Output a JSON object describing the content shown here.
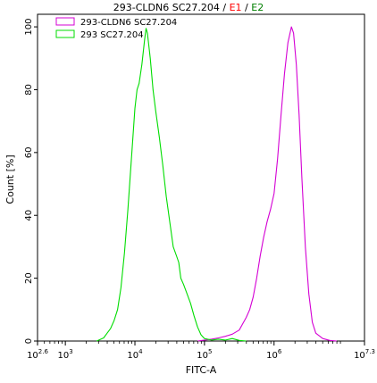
{
  "chart_data": {
    "type": "line",
    "title": {
      "main": "293-CLDN6 SC27.204",
      "sep1": " / ",
      "gate1": "E1",
      "sep2": " / ",
      "gate2": "E2"
    },
    "xlabel": "FITC-A",
    "ylabel": "Count [%]",
    "xscale": "log",
    "xlim_log10": [
      2.6,
      7.3
    ],
    "ylim": [
      0,
      104
    ],
    "x_ticks": [
      {
        "base": "10",
        "exp": "2.6",
        "log": 2.6
      },
      {
        "base": "10",
        "exp": "3",
        "log": 3
      },
      {
        "base": "10",
        "exp": "4",
        "log": 4
      },
      {
        "base": "10",
        "exp": "5",
        "log": 5
      },
      {
        "base": "10",
        "exp": "6",
        "log": 6
      },
      {
        "base": "10",
        "exp": "7.3",
        "log": 7.3
      }
    ],
    "y_ticks": [
      "0",
      "20",
      "40",
      "60",
      "80",
      "100"
    ],
    "legend_position": "top-left",
    "series": [
      {
        "name": "293-CLDN6 SC27.204",
        "color": "#d400d4",
        "points_log10_x": [
          [
            4.9,
            0
          ],
          [
            5.0,
            0.3
          ],
          [
            5.1,
            0.6
          ],
          [
            5.2,
            1.0
          ],
          [
            5.3,
            1.5
          ],
          [
            5.4,
            2.2
          ],
          [
            5.5,
            3.5
          ],
          [
            5.55,
            5.5
          ],
          [
            5.6,
            7.5
          ],
          [
            5.65,
            10
          ],
          [
            5.7,
            14
          ],
          [
            5.75,
            20
          ],
          [
            5.8,
            27
          ],
          [
            5.85,
            33
          ],
          [
            5.9,
            38
          ],
          [
            5.95,
            42
          ],
          [
            6.0,
            47
          ],
          [
            6.05,
            58
          ],
          [
            6.1,
            72
          ],
          [
            6.15,
            85
          ],
          [
            6.2,
            95
          ],
          [
            6.25,
            100
          ],
          [
            6.28,
            98
          ],
          [
            6.32,
            88
          ],
          [
            6.36,
            72
          ],
          [
            6.4,
            52
          ],
          [
            6.45,
            30
          ],
          [
            6.5,
            15
          ],
          [
            6.55,
            6
          ],
          [
            6.6,
            2.5
          ],
          [
            6.7,
            0.8
          ],
          [
            6.8,
            0.2
          ],
          [
            6.9,
            0
          ]
        ]
      },
      {
        "name": "293 SC27.204",
        "color": "#00dd00",
        "points_log10_x": [
          [
            3.45,
            0
          ],
          [
            3.55,
            1
          ],
          [
            3.6,
            2.5
          ],
          [
            3.65,
            4
          ],
          [
            3.7,
            6.5
          ],
          [
            3.75,
            10
          ],
          [
            3.8,
            17
          ],
          [
            3.85,
            28
          ],
          [
            3.9,
            42
          ],
          [
            3.95,
            58
          ],
          [
            4.0,
            74
          ],
          [
            4.03,
            80
          ],
          [
            4.06,
            82
          ],
          [
            4.1,
            88
          ],
          [
            4.14,
            96
          ],
          [
            4.16,
            99.5
          ],
          [
            4.18,
            98
          ],
          [
            4.22,
            90
          ],
          [
            4.26,
            80
          ],
          [
            4.3,
            73
          ],
          [
            4.35,
            65
          ],
          [
            4.4,
            56
          ],
          [
            4.45,
            46
          ],
          [
            4.5,
            38
          ],
          [
            4.55,
            30
          ],
          [
            4.6,
            27
          ],
          [
            4.63,
            25
          ],
          [
            4.66,
            20
          ],
          [
            4.7,
            18
          ],
          [
            4.75,
            15
          ],
          [
            4.8,
            12
          ],
          [
            4.85,
            8
          ],
          [
            4.9,
            4.5
          ],
          [
            4.95,
            2
          ],
          [
            5.0,
            0.8
          ],
          [
            5.1,
            0.3
          ],
          [
            5.2,
            0.6
          ],
          [
            5.3,
            0.3
          ],
          [
            5.4,
            0.8
          ],
          [
            5.5,
            0.2
          ],
          [
            5.6,
            0
          ]
        ]
      }
    ]
  }
}
